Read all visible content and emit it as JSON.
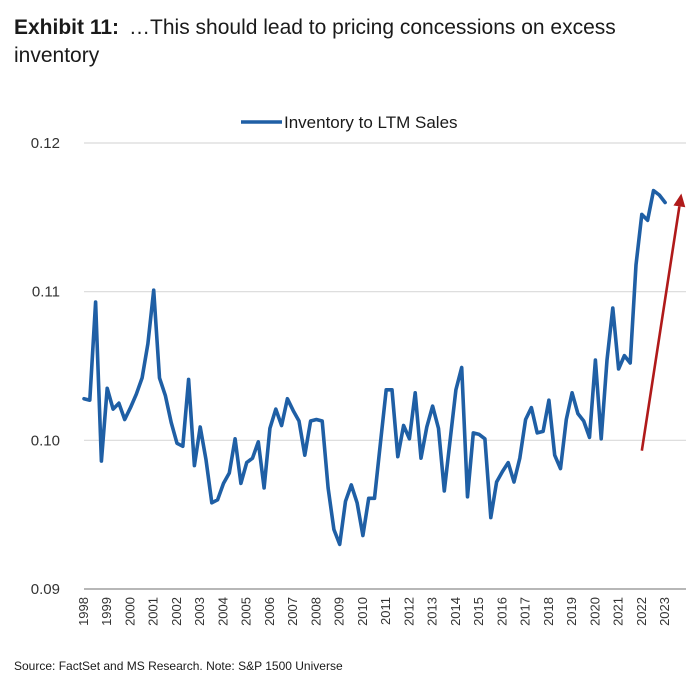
{
  "header": {
    "exhibit": "Exhibit 11:",
    "title": "…This should lead to pricing concessions on excess inventory"
  },
  "footer": {
    "source": "Source: FactSet and MS Research. Note: S&P 1500 Universe"
  },
  "chart_data": {
    "type": "line",
    "title": "",
    "xlabel": "",
    "ylabel": "",
    "ylim": [
      0.09,
      0.12
    ],
    "yticks": [
      "0.09",
      "0.10",
      "0.11",
      "0.12"
    ],
    "xlim": [
      1998,
      2023.9
    ],
    "xticks": [
      "1998",
      "1999",
      "2000",
      "2001",
      "2002",
      "2003",
      "2004",
      "2005",
      "2006",
      "2007",
      "2008",
      "2009",
      "2010",
      "2011",
      "2012",
      "2013",
      "2014",
      "2015",
      "2016",
      "2017",
      "2018",
      "2019",
      "2020",
      "2021",
      "2022",
      "2023"
    ],
    "grid": "horizontal",
    "legend_position": "top-center",
    "colors": {
      "series": "#1f5fa5",
      "arrow": "#b01a1a",
      "grid": "#d9d9d9",
      "axis": "#8c8c8c"
    },
    "series": [
      {
        "name": "Inventory to LTM Sales",
        "x": [
          1998.0,
          1998.25,
          1998.5,
          1998.75,
          1999.0,
          1999.25,
          1999.5,
          1999.75,
          2000.0,
          2000.25,
          2000.5,
          2000.75,
          2001.0,
          2001.25,
          2001.5,
          2001.75,
          2002.0,
          2002.25,
          2002.5,
          2002.75,
          2003.0,
          2003.25,
          2003.5,
          2003.75,
          2004.0,
          2004.25,
          2004.5,
          2004.75,
          2005.0,
          2005.25,
          2005.5,
          2005.75,
          2006.0,
          2006.25,
          2006.5,
          2006.75,
          2007.0,
          2007.25,
          2007.5,
          2007.75,
          2008.0,
          2008.25,
          2008.5,
          2008.75,
          2009.0,
          2009.25,
          2009.5,
          2009.75,
          2010.0,
          2010.25,
          2010.5,
          2010.75,
          2011.0,
          2011.25,
          2011.5,
          2011.75,
          2012.0,
          2012.25,
          2012.5,
          2012.75,
          2013.0,
          2013.25,
          2013.5,
          2013.75,
          2014.0,
          2014.25,
          2014.5,
          2014.75,
          2015.0,
          2015.25,
          2015.5,
          2015.75,
          2016.0,
          2016.25,
          2016.5,
          2016.75,
          2017.0,
          2017.25,
          2017.5,
          2017.75,
          2018.0,
          2018.25,
          2018.5,
          2018.75,
          2019.0,
          2019.25,
          2019.5,
          2019.75,
          2020.0,
          2020.25,
          2020.5,
          2020.75,
          2021.0,
          2021.25,
          2021.5,
          2021.75,
          2022.0,
          2022.25,
          2022.5,
          2022.75,
          2023.0
        ],
        "values": [
          0.1028,
          0.1027,
          0.1093,
          0.0986,
          0.1035,
          0.1021,
          0.1025,
          0.1014,
          0.1022,
          0.1031,
          0.1042,
          0.1065,
          0.1101,
          0.1042,
          0.103,
          0.1012,
          0.0998,
          0.0996,
          0.1041,
          0.0983,
          0.1009,
          0.0987,
          0.0958,
          0.096,
          0.0971,
          0.0978,
          0.1001,
          0.0971,
          0.0985,
          0.0988,
          0.0999,
          0.0968,
          0.1008,
          0.1021,
          0.101,
          0.1028,
          0.102,
          0.1013,
          0.099,
          0.1013,
          0.1014,
          0.1013,
          0.0968,
          0.094,
          0.093,
          0.0959,
          0.097,
          0.0958,
          0.0936,
          0.0961,
          0.0961,
          0.0998,
          0.1034,
          0.1034,
          0.0989,
          0.101,
          0.1001,
          0.1032,
          0.0988,
          0.1009,
          0.1023,
          0.1008,
          0.0966,
          0.1,
          0.1034,
          0.1049,
          0.0962,
          0.1005,
          0.1004,
          0.1001,
          0.0948,
          0.0972,
          0.0979,
          0.0985,
          0.0972,
          0.0988,
          0.1014,
          0.1022,
          0.1005,
          0.1006,
          0.1027,
          0.099,
          0.0981,
          0.1014,
          0.1032,
          0.1018,
          0.1013,
          0.1002,
          0.1054,
          0.1001,
          0.1054,
          0.1089,
          0.1048,
          0.1057,
          0.1052,
          0.1118,
          0.1152,
          0.1148,
          0.1168,
          0.1165,
          0.116
        ]
      }
    ],
    "annotations": [
      {
        "type": "arrow",
        "from": [
          2022.0,
          0.0993
        ],
        "to": [
          2023.7,
          0.1166
        ]
      }
    ]
  }
}
